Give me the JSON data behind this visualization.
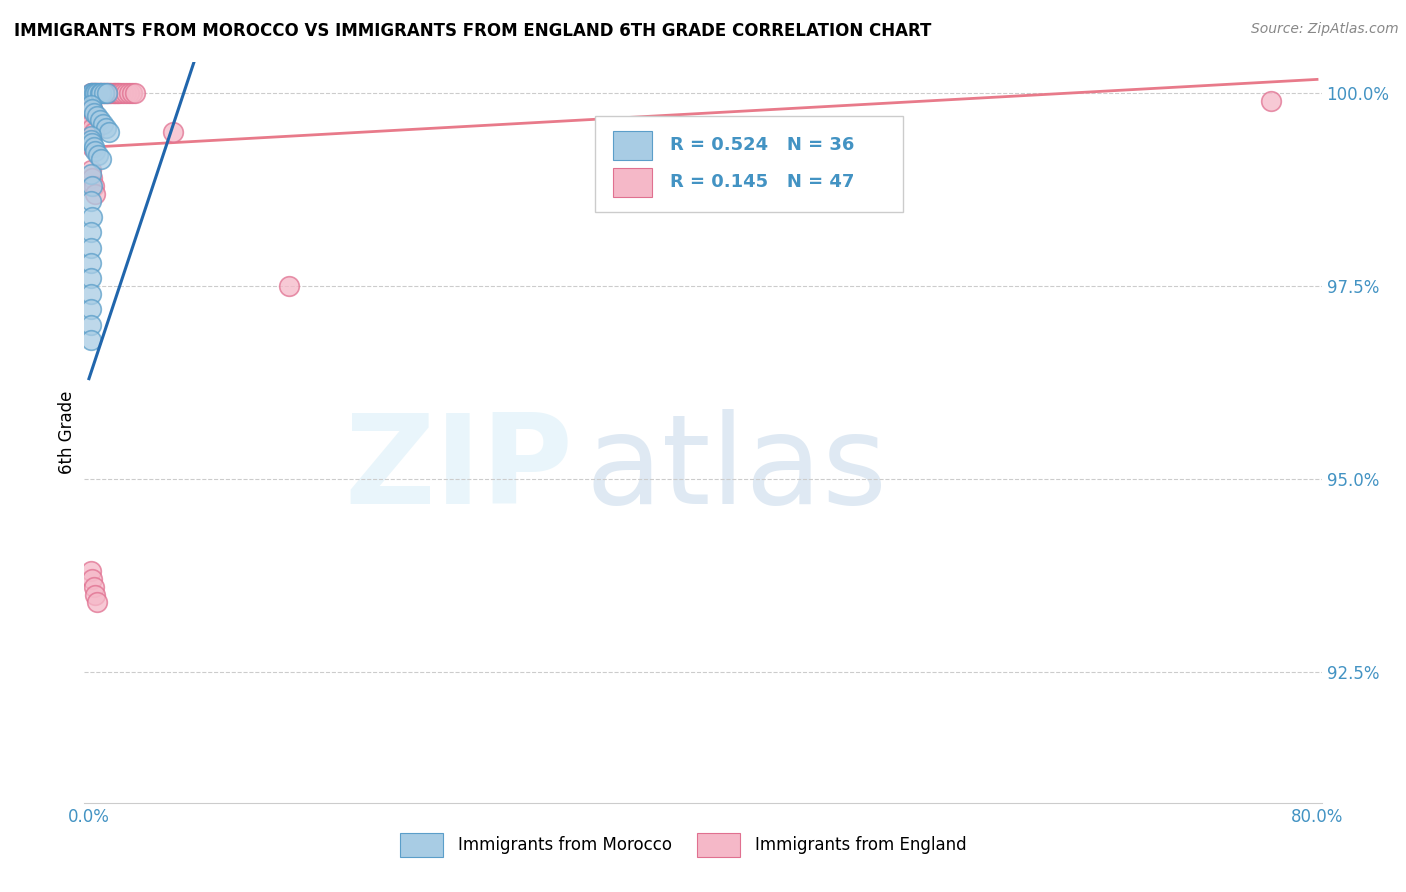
{
  "title": "IMMIGRANTS FROM MOROCCO VS IMMIGRANTS FROM ENGLAND 6TH GRADE CORRELATION CHART",
  "source": "Source: ZipAtlas.com",
  "ylabel": "6th Grade",
  "legend_label_morocco": "Immigrants from Morocco",
  "legend_label_england": "Immigrants from England",
  "xmin": 0.0,
  "xmax": 0.8,
  "ymin": 0.908,
  "ymax": 1.004,
  "yticks": [
    0.925,
    0.95,
    0.975,
    1.0
  ],
  "ytick_labels": [
    "92.5%",
    "95.0%",
    "97.5%",
    "100.0%"
  ],
  "morocco_color": "#a8cce4",
  "morocco_edge_color": "#5b9ec9",
  "england_color": "#f5b8c8",
  "england_edge_color": "#e07090",
  "morocco_line_color": "#2166ac",
  "england_line_color": "#e87a8a",
  "R_morocco": 0.524,
  "N_morocco": 36,
  "R_england": 0.145,
  "N_england": 47,
  "tick_color": "#4393c3",
  "grid_color": "#cccccc",
  "title_fontsize": 12,
  "source_fontsize": 10,
  "tick_fontsize": 12,
  "legend_fontsize": 13,
  "marker_size": 200,
  "morocco_x": [
    0.001,
    0.002,
    0.003,
    0.004,
    0.005,
    0.007,
    0.008,
    0.01,
    0.012,
    0.001,
    0.002,
    0.003,
    0.005,
    0.007,
    0.009,
    0.011,
    0.013,
    0.001,
    0.001,
    0.002,
    0.003,
    0.004,
    0.006,
    0.008,
    0.001,
    0.002,
    0.001,
    0.002,
    0.001,
    0.001,
    0.001,
    0.001,
    0.001,
    0.001,
    0.001,
    0.001
  ],
  "morocco_y": [
    1.0,
    1.0,
    1.0,
    1.0,
    1.0,
    1.0,
    1.0,
    1.0,
    1.0,
    0.9985,
    0.998,
    0.9975,
    0.997,
    0.9965,
    0.996,
    0.9955,
    0.995,
    0.9945,
    0.994,
    0.9935,
    0.993,
    0.9925,
    0.992,
    0.9915,
    0.9895,
    0.988,
    0.986,
    0.984,
    0.982,
    0.98,
    0.978,
    0.976,
    0.974,
    0.972,
    0.97,
    0.968
  ],
  "england_x": [
    0.001,
    0.002,
    0.003,
    0.004,
    0.005,
    0.006,
    0.007,
    0.008,
    0.009,
    0.01,
    0.011,
    0.012,
    0.013,
    0.014,
    0.015,
    0.016,
    0.017,
    0.018,
    0.019,
    0.02,
    0.022,
    0.024,
    0.026,
    0.028,
    0.03,
    0.001,
    0.002,
    0.003,
    0.004,
    0.005,
    0.001,
    0.002,
    0.003,
    0.001,
    0.002,
    0.055,
    0.13,
    0.77,
    0.001,
    0.002,
    0.003,
    0.004,
    0.001,
    0.002,
    0.003,
    0.004,
    0.005
  ],
  "england_y": [
    1.0,
    1.0,
    1.0,
    1.0,
    1.0,
    1.0,
    1.0,
    1.0,
    1.0,
    1.0,
    1.0,
    1.0,
    1.0,
    1.0,
    1.0,
    1.0,
    1.0,
    1.0,
    1.0,
    1.0,
    1.0,
    1.0,
    1.0,
    1.0,
    1.0,
    0.9985,
    0.998,
    0.9975,
    0.997,
    0.9965,
    0.996,
    0.9955,
    0.995,
    0.9935,
    0.993,
    0.995,
    0.975,
    0.999,
    0.99,
    0.989,
    0.988,
    0.987,
    0.938,
    0.937,
    0.936,
    0.935,
    0.934
  ]
}
